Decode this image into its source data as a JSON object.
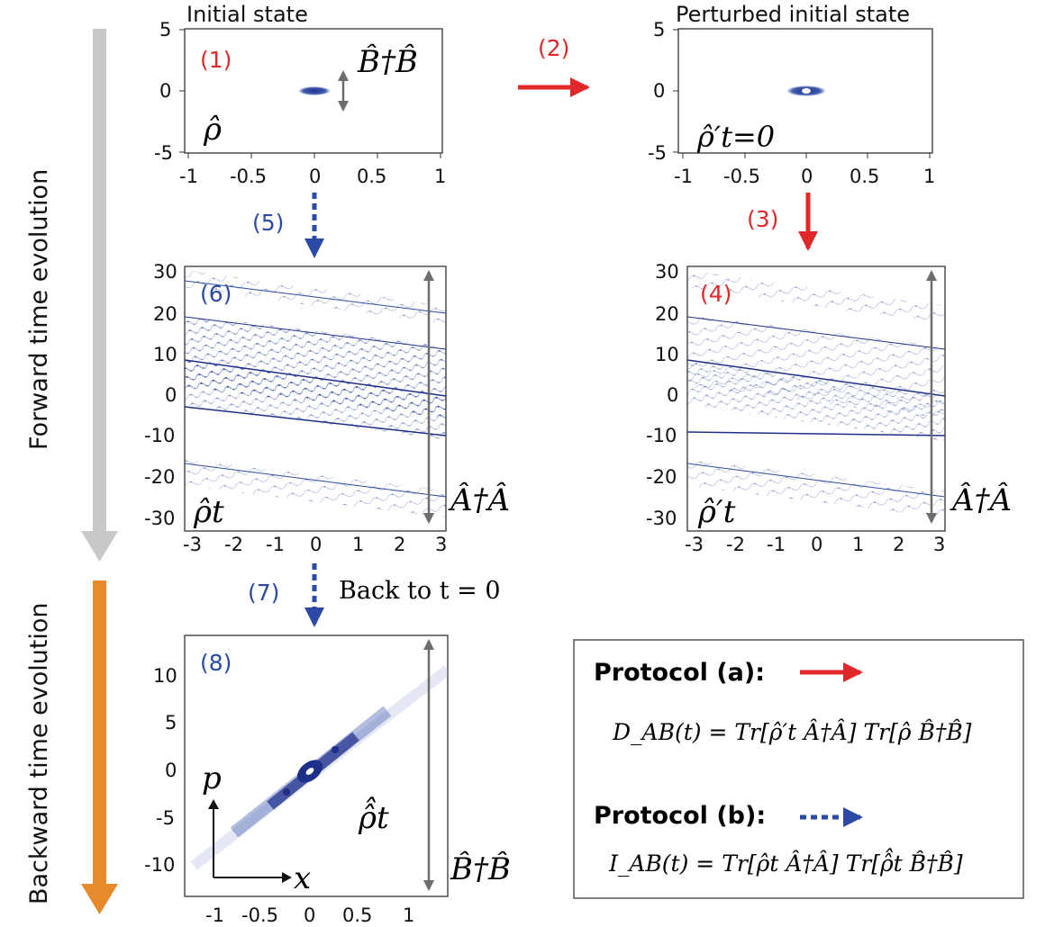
{
  "side_labels": {
    "forward": "Forward time evolution",
    "backward": "Backward time evolution"
  },
  "step_labels": {
    "s1": "(1)",
    "s2": "(2)",
    "s3": "(3)",
    "s4": "(4)",
    "s5": "(5)",
    "s6": "(6)",
    "s7": "(7)",
    "s8": "(8)"
  },
  "panel_titles": {
    "initial": "Initial state",
    "perturbed": "Perturbed initial state"
  },
  "back_to": "Back to t = 0",
  "operators": {
    "b_op": "B̂†B̂",
    "a_op": "Â†Â"
  },
  "states": {
    "rho": "ρ̂",
    "rho_prime_t0": "ρ̂′t=0",
    "rho_t": "ρ̂t",
    "rho_prime_t": "ρ̂′t",
    "rho_tilde_t": "ρ̂̂t"
  },
  "axes": {
    "p": "p",
    "x": "x"
  },
  "ticks": {
    "small_x": [
      "-1",
      "-0.5",
      "0",
      "0.5",
      "1"
    ],
    "small_y": [
      "5",
      "0",
      "-5"
    ],
    "mid_x": [
      "-3",
      "-2",
      "-1",
      "0",
      "1",
      "2",
      "3"
    ],
    "mid_y": [
      "30",
      "20",
      "10",
      "0",
      "-10",
      "-20",
      "-30"
    ],
    "bot_x": [
      "-1",
      "-0.5",
      "0",
      "0.5",
      "1"
    ],
    "bot_y": [
      "10",
      "5",
      "0",
      "-5",
      "-10"
    ]
  },
  "legend": {
    "protocol_a": "Protocol (a):",
    "protocol_b": "Protocol (b):",
    "formula_a": "D_AB(t) = Tr[ρ̂′t Â†Â] Tr[ρ̂ B̂†B̂]",
    "formula_b": "I_AB(t) = Tr[ρ̂t Â†Â] Tr[ρ̂̂t B̂†B̂]"
  },
  "colors": {
    "red": "#e0282a",
    "blue": "#2b4aa5",
    "gray_arrow": "#c8c8c8",
    "orange_arrow": "#e88a2b",
    "dark_blue_data": "#1e2f8a"
  }
}
